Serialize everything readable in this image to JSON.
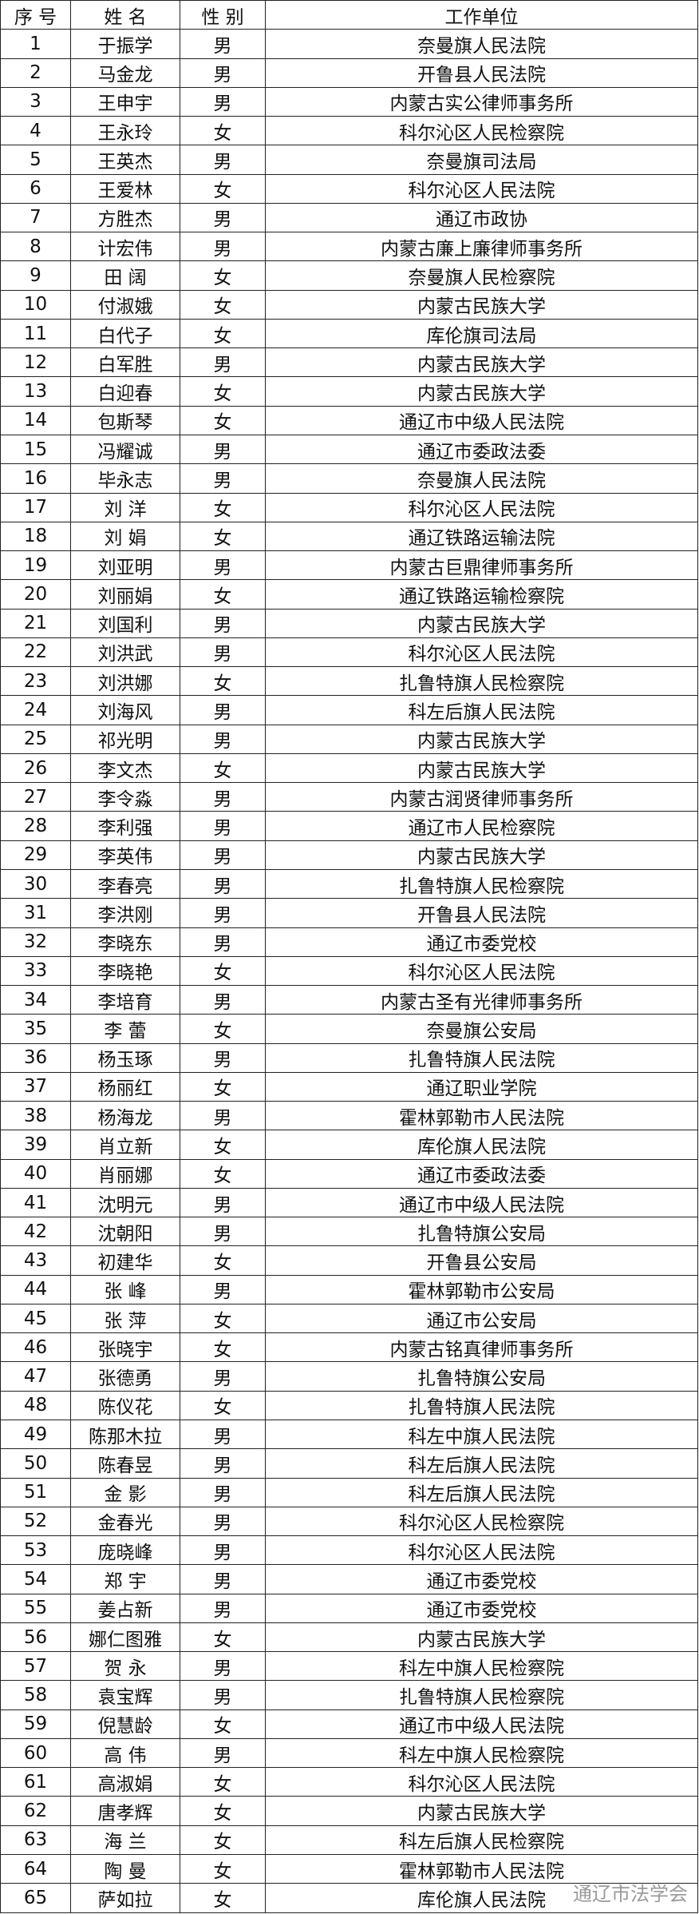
{
  "table": {
    "header": [
      "序 号",
      "姓 名",
      "性 别",
      "工作单位"
    ],
    "rows": [
      [
        "1",
        "于振学",
        "男",
        "奈曼旗人民法院"
      ],
      [
        "2",
        "马金龙",
        "男",
        "开鲁县人民法院"
      ],
      [
        "3",
        "王申宇",
        "男",
        "内蒙古实公律师事务所"
      ],
      [
        "4",
        "王永玲",
        "女",
        "科尔沁区人民检察院"
      ],
      [
        "5",
        "王英杰",
        "男",
        "奈曼旗司法局"
      ],
      [
        "6",
        "王爱林",
        "女",
        "科尔沁区人民法院"
      ],
      [
        "7",
        "方胜杰",
        "男",
        "通辽市政协"
      ],
      [
        "8",
        "计宏伟",
        "男",
        "内蒙古廉上廉律师事务所"
      ],
      [
        "9",
        "田 阔",
        "女",
        "奈曼旗人民检察院"
      ],
      [
        "10",
        "付淑娥",
        "女",
        "内蒙古民族大学"
      ],
      [
        "11",
        "白代子",
        "女",
        "库伦旗司法局"
      ],
      [
        "12",
        "白军胜",
        "男",
        "内蒙古民族大学"
      ],
      [
        "13",
        "白迎春",
        "女",
        "内蒙古民族大学"
      ],
      [
        "14",
        "包斯琴",
        "女",
        "通辽市中级人民法院"
      ],
      [
        "15",
        "冯耀诚",
        "男",
        "通辽市委政法委"
      ],
      [
        "16",
        "毕永志",
        "男",
        "奈曼旗人民法院"
      ],
      [
        "17",
        "刘 洋",
        "女",
        "科尔沁区人民法院"
      ],
      [
        "18",
        "刘 娟",
        "女",
        "通辽铁路运输法院"
      ],
      [
        "19",
        "刘亚明",
        "男",
        "内蒙古巨鼎律师事务所"
      ],
      [
        "20",
        "刘丽娟",
        "女",
        "通辽铁路运输检察院"
      ],
      [
        "21",
        "刘国利",
        "男",
        "内蒙古民族大学"
      ],
      [
        "22",
        "刘洪武",
        "男",
        "科尔沁区人民法院"
      ],
      [
        "23",
        "刘洪娜",
        "女",
        "扎鲁特旗人民检察院"
      ],
      [
        "24",
        "刘海风",
        "男",
        "科左后旗人民法院"
      ],
      [
        "25",
        "祁光明",
        "男",
        "内蒙古民族大学"
      ],
      [
        "26",
        "李文杰",
        "女",
        "内蒙古民族大学"
      ],
      [
        "27",
        "李令淼",
        "男",
        "内蒙古润贤律师事务所"
      ],
      [
        "28",
        "李利强",
        "男",
        "通辽市人民检察院"
      ],
      [
        "29",
        "李英伟",
        "男",
        "内蒙古民族大学"
      ],
      [
        "30",
        "李春亮",
        "男",
        "扎鲁特旗人民检察院"
      ],
      [
        "31",
        "李洪刚",
        "男",
        "开鲁县人民法院"
      ],
      [
        "32",
        "李晓东",
        "男",
        "通辽市委党校"
      ],
      [
        "33",
        "李晓艳",
        "女",
        "科尔沁区人民法院"
      ],
      [
        "34",
        "李培育",
        "男",
        "内蒙古圣有光律师事务所"
      ],
      [
        "35",
        "李 蕾",
        "女",
        "奈曼旗公安局"
      ],
      [
        "36",
        "杨玉琢",
        "男",
        "扎鲁特旗人民法院"
      ],
      [
        "37",
        "杨丽红",
        "女",
        "通辽职业学院"
      ],
      [
        "38",
        "杨海龙",
        "男",
        "霍林郭勒市人民法院"
      ],
      [
        "39",
        "肖立新",
        "女",
        "库伦旗人民法院"
      ],
      [
        "40",
        "肖丽娜",
        "女",
        "通辽市委政法委"
      ],
      [
        "41",
        "沈明元",
        "男",
        "通辽市中级人民法院"
      ],
      [
        "42",
        "沈朝阳",
        "男",
        "扎鲁特旗公安局"
      ],
      [
        "43",
        "初建华",
        "女",
        "开鲁县公安局"
      ],
      [
        "44",
        "张 峰",
        "男",
        "霍林郭勒市公安局"
      ],
      [
        "45",
        "张 萍",
        "女",
        "通辽市公安局"
      ],
      [
        "46",
        "张晓宇",
        "女",
        "内蒙古铭真律师事务所"
      ],
      [
        "47",
        "张德勇",
        "男",
        "扎鲁特旗公安局"
      ],
      [
        "48",
        "陈仪花",
        "女",
        "扎鲁特旗人民法院"
      ],
      [
        "49",
        "陈那木拉",
        "男",
        "科左中旗人民法院"
      ],
      [
        "50",
        "陈春昱",
        "男",
        "科左后旗人民法院"
      ],
      [
        "51",
        "金 影",
        "男",
        "科左后旗人民法院"
      ],
      [
        "52",
        "金春光",
        "男",
        "科尔沁区人民检察院"
      ],
      [
        "53",
        "庞晓峰",
        "男",
        "科尔沁区人民法院"
      ],
      [
        "54",
        "郑 宇",
        "男",
        "通辽市委党校"
      ],
      [
        "55",
        "姜占新",
        "男",
        "通辽市委党校"
      ],
      [
        "56",
        "娜仁图雅",
        "女",
        "内蒙古民族大学"
      ],
      [
        "57",
        "贺 永",
        "男",
        "科左中旗人民检察院"
      ],
      [
        "58",
        "袁宝辉",
        "男",
        "扎鲁特旗人民检察院"
      ],
      [
        "59",
        "倪慧龄",
        "女",
        "通辽市中级人民法院"
      ],
      [
        "60",
        "高 伟",
        "男",
        "科左中旗人民检察院"
      ],
      [
        "61",
        "高淑娟",
        "女",
        "科尔沁区人民法院"
      ],
      [
        "62",
        "唐孝辉",
        "女",
        "内蒙古民族大学"
      ],
      [
        "63",
        "海 兰",
        "女",
        "科左后旗人民检察院"
      ],
      [
        "64",
        "陶 曼",
        "女",
        "霍林郭勒市人民法院"
      ],
      [
        "65",
        "萨如拉",
        "女",
        "库伦旗人民法院"
      ]
    ]
  },
  "watermark": "通辽市法学会"
}
